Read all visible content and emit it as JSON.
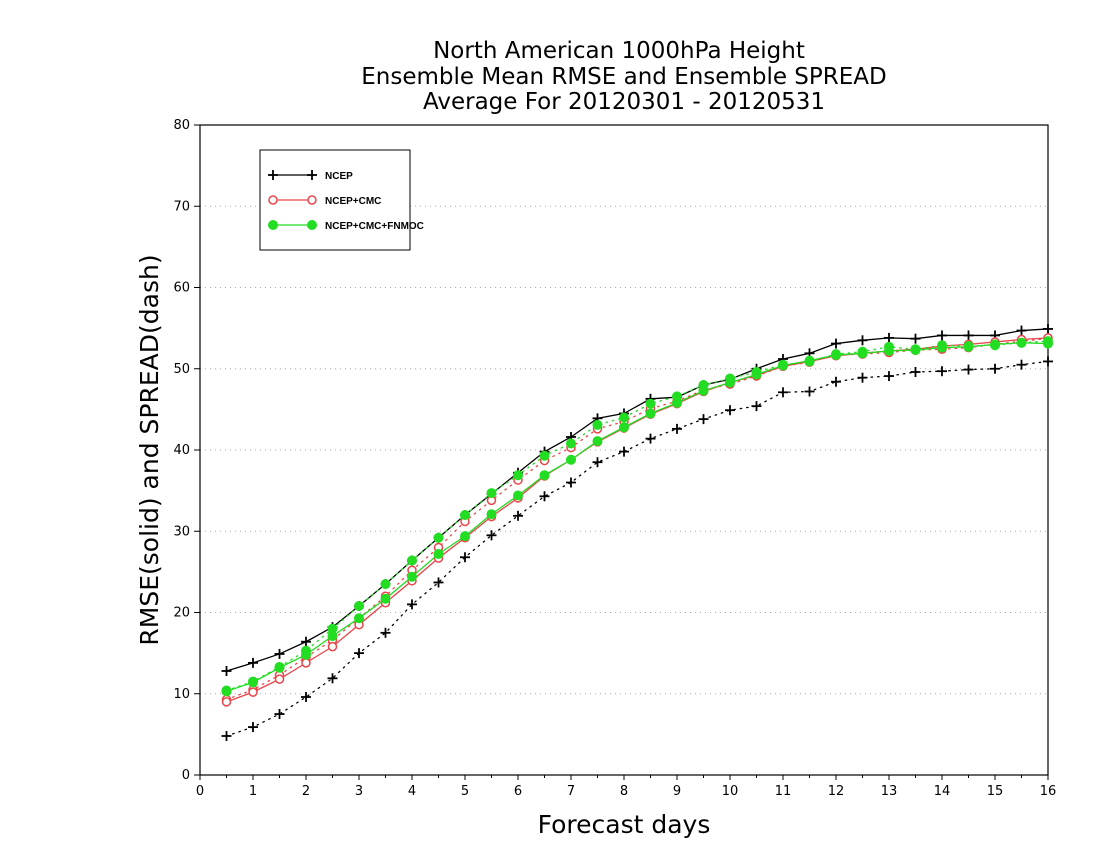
{
  "chart_data": {
    "type": "line",
    "title": [
      "North American 1000hPa Height",
      "Ensemble Mean RMSE and Ensemble SPREAD",
      "Average For 20120301 - 20120531"
    ],
    "xlabel": "Forecast days",
    "ylabel": "RMSE(solid) and SPREAD(dash)",
    "xlim": [
      0,
      16
    ],
    "ylim": [
      0,
      80
    ],
    "xticks": [
      "0",
      "1",
      "2",
      "3",
      "4",
      "5",
      "6",
      "7",
      "8",
      "9",
      "10",
      "11",
      "12",
      "13",
      "14",
      "15",
      "16"
    ],
    "yticks": [
      "0",
      "10",
      "20",
      "30",
      "40",
      "50",
      "60",
      "70",
      "80"
    ],
    "grid": "horizontal dotted",
    "legend_position": "top-left",
    "x": [
      0.5,
      1,
      1.5,
      2,
      2.5,
      3,
      3.5,
      4,
      4.5,
      5,
      5.5,
      6,
      6.5,
      7,
      7.5,
      8,
      8.5,
      9,
      9.5,
      10,
      10.5,
      11,
      11.5,
      12,
      12.5,
      13,
      13.5,
      14,
      14.5,
      15,
      15.5,
      16
    ],
    "series": [
      {
        "name": "NCEP",
        "color": "#000000",
        "marker": "plus",
        "rmse": [
          12.8,
          13.8,
          14.9,
          16.4,
          18.2,
          20.8,
          23.5,
          26.4,
          29.2,
          32.0,
          34.6,
          37.2,
          39.8,
          41.6,
          43.9,
          44.5,
          46.3,
          46.5,
          48.0,
          48.7,
          50.0,
          51.2,
          51.9,
          53.1,
          53.5,
          53.8,
          53.7,
          54.1,
          54.1,
          54.1,
          54.7,
          54.9
        ],
        "spread": [
          4.8,
          5.9,
          7.5,
          9.6,
          11.9,
          15.0,
          17.5,
          21.0,
          23.7,
          26.8,
          29.5,
          31.9,
          34.3,
          36.0,
          38.5,
          39.8,
          41.4,
          42.6,
          43.8,
          44.9,
          45.4,
          47.1,
          47.2,
          48.4,
          48.9,
          49.1,
          49.6,
          49.7,
          49.9,
          50.0,
          50.5,
          50.9
        ]
      },
      {
        "name": "NCEP+CMC",
        "color": "#e8454a",
        "marker": "open-circle",
        "rmse": [
          9.0,
          10.2,
          11.8,
          13.8,
          15.8,
          18.5,
          21.2,
          23.9,
          26.7,
          29.2,
          31.8,
          34.1,
          36.8,
          38.8,
          41.0,
          42.7,
          44.4,
          45.7,
          47.2,
          48.3,
          49.2,
          50.3,
          50.9,
          51.6,
          51.9,
          52.2,
          52.4,
          52.8,
          53.0,
          53.3,
          53.6,
          53.8
        ],
        "spread": [
          9.3,
          10.5,
          12.3,
          14.5,
          16.6,
          19.3,
          22.0,
          25.2,
          28.0,
          31.2,
          33.8,
          36.3,
          38.7,
          40.3,
          42.6,
          43.5,
          45.1,
          46.0,
          47.4,
          48.1,
          49.1,
          50.3,
          50.8,
          51.7,
          51.8,
          52.0,
          52.3,
          52.4,
          52.6,
          53.0,
          53.4,
          53.7
        ]
      },
      {
        "name": "NCEP+CMC+FNMOC",
        "color": "#22dd22",
        "marker": "filled-circle",
        "rmse": [
          10.3,
          11.4,
          13.2,
          14.8,
          17.1,
          19.3,
          21.7,
          24.4,
          27.2,
          29.4,
          32.1,
          34.4,
          36.9,
          38.8,
          41.1,
          42.8,
          44.5,
          45.8,
          47.3,
          48.3,
          49.3,
          50.4,
          51.0,
          51.7,
          51.9,
          52.2,
          52.3,
          52.6,
          52.7,
          53.0,
          53.2,
          53.1
        ],
        "spread": [
          10.4,
          11.5,
          13.3,
          15.3,
          18.0,
          20.8,
          23.5,
          26.4,
          29.2,
          32.0,
          34.7,
          36.9,
          39.3,
          40.8,
          43.1,
          44.0,
          45.7,
          46.6,
          48.0,
          48.8,
          49.6,
          50.5,
          50.9,
          51.8,
          52.1,
          52.7,
          52.4,
          52.9,
          52.8,
          52.9,
          53.2,
          53.4
        ]
      }
    ]
  }
}
